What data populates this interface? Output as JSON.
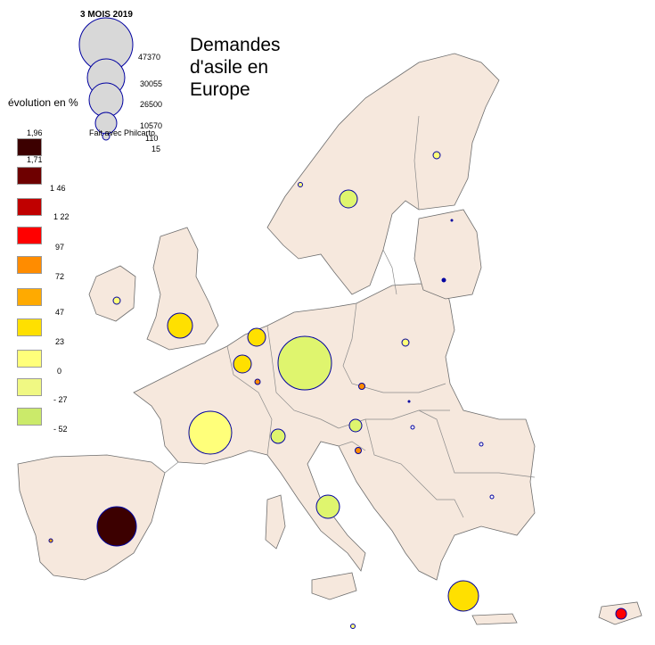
{
  "title": "Demandes\nd'asile en\nEurope",
  "size_legend": {
    "title": "3 MOIS 2019",
    "values": [
      "47370",
      "30055",
      "26500",
      "10570",
      "110",
      "15"
    ]
  },
  "color_legend": {
    "title": "évolution en %",
    "classes": [
      {
        "label": "1,96",
        "color": "#3c0000"
      },
      {
        "label": "1,71",
        "color": "#6e0000"
      },
      {
        "label": "1 46",
        "color": "#c00000"
      },
      {
        "label": "1 22",
        "color": "#ff0000"
      },
      {
        "label": "97",
        "color": "#ff8c00"
      },
      {
        "label": "72",
        "color": "#ffaa00"
      },
      {
        "label": "47",
        "color": "#ffe000"
      },
      {
        "label": "23",
        "color": "#ffff7a"
      },
      {
        "label": "0",
        "color": "#f0f883"
      },
      {
        "label": "- 27",
        "color": "#dff56e"
      },
      {
        "label": "- 52",
        "color": "#cbea6a"
      }
    ],
    "extra_labels": [
      "23",
      "0",
      "- 27",
      "- 52"
    ]
  },
  "credit": "Fait avec Philcarto",
  "colors": {
    "land": "#f6e8dd",
    "border": "#6e6e6e",
    "circle_outline": "#0000a0",
    "size_legend_fill": "#d8d8d8"
  }
}
